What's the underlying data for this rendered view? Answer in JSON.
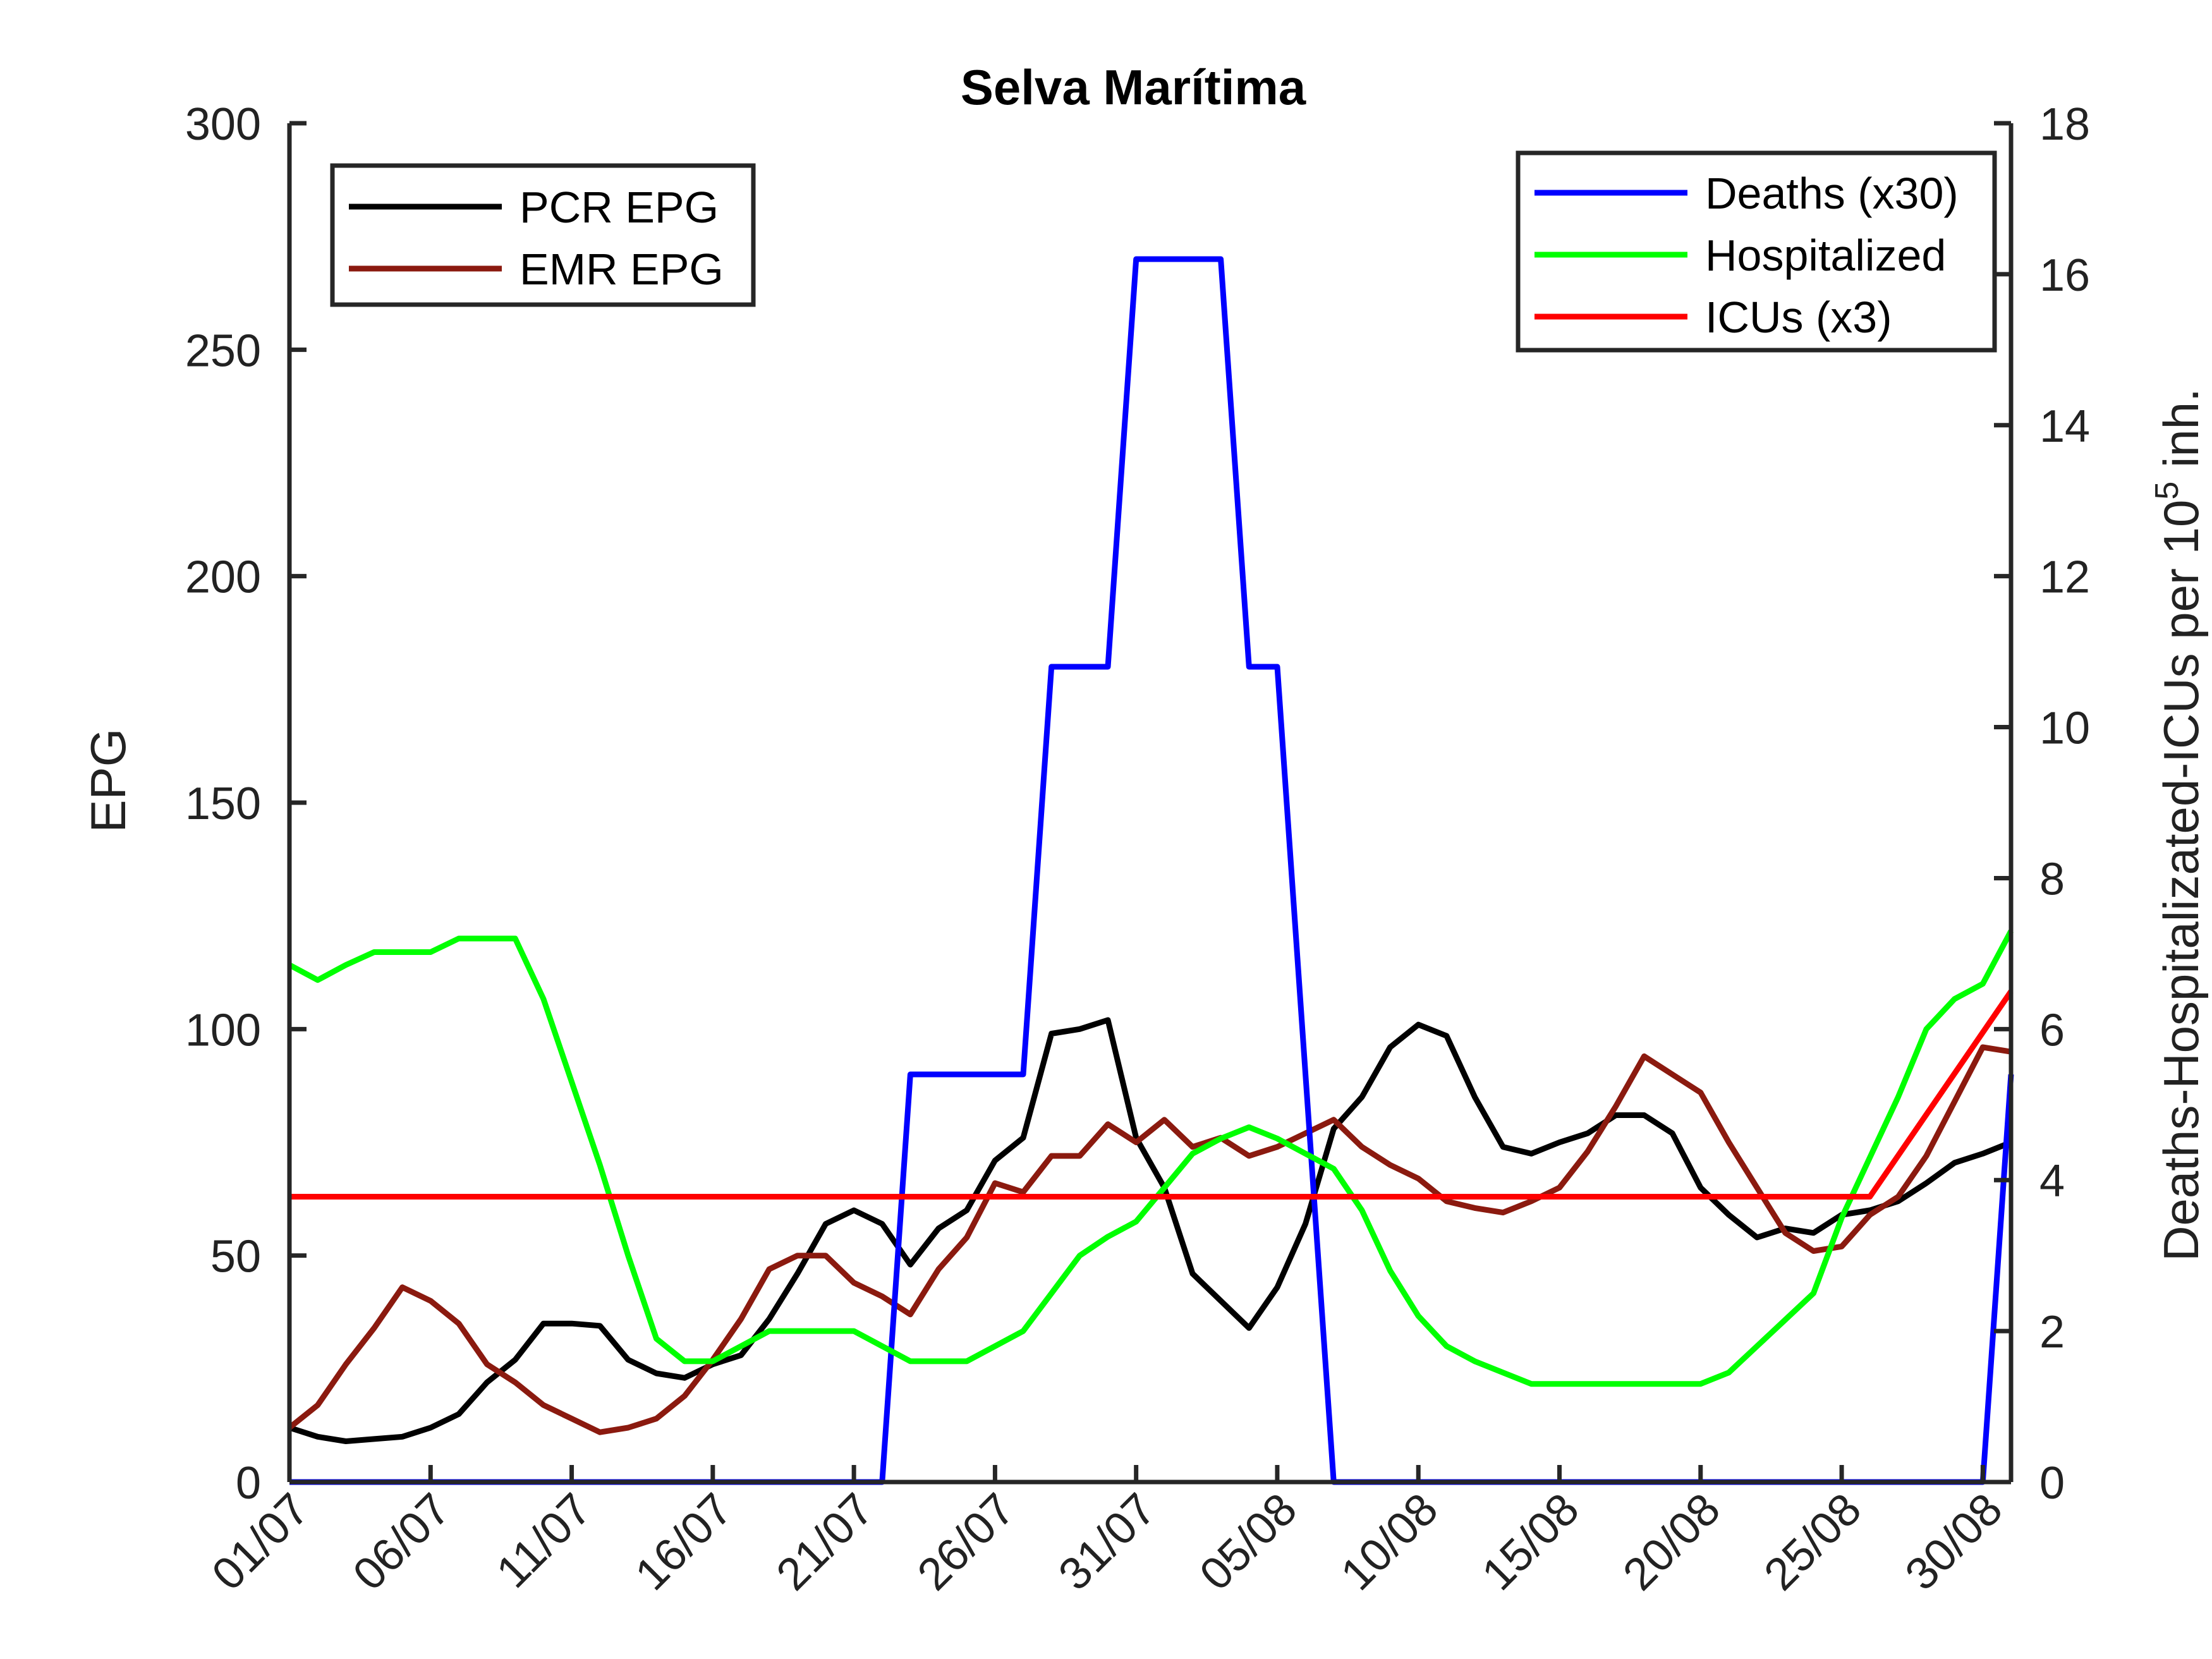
{
  "chart_data": {
    "type": "line",
    "title": "Selva Marítima",
    "xlabel": "",
    "ylabel_left": "EPG",
    "ylabel_right_main": "Deaths-Hospitalizated-ICUs per 10",
    "ylabel_right_sup": "5",
    "ylabel_right_tail": " inh.",
    "x_ticks": [
      "01/07",
      "06/07",
      "11/07",
      "16/07",
      "21/07",
      "26/07",
      "31/07",
      "05/08",
      "10/08",
      "15/08",
      "20/08",
      "25/08",
      "30/08"
    ],
    "x_tick_days": [
      0,
      5,
      10,
      15,
      20,
      25,
      30,
      35,
      40,
      45,
      50,
      55,
      60
    ],
    "x_range_days": [
      0,
      61
    ],
    "y_left": {
      "lim": [
        0,
        300
      ],
      "ticks": [
        0,
        50,
        100,
        150,
        200,
        250,
        300
      ]
    },
    "y_right": {
      "lim": [
        0,
        18
      ],
      "ticks": [
        0,
        2,
        4,
        6,
        8,
        10,
        12,
        14,
        16,
        18
      ]
    },
    "grid": false,
    "legends": [
      {
        "position": "top-left",
        "series": [
          "PCR EPG",
          "EMR EPG"
        ]
      },
      {
        "position": "top-right",
        "series": [
          "Deaths (x30)",
          "Hospitalized",
          "ICUs (x3)"
        ]
      }
    ],
    "series": [
      {
        "name": "PCR EPG",
        "axis": "left",
        "color": "#000000",
        "points": [
          [
            0,
            12
          ],
          [
            1,
            10
          ],
          [
            2,
            9
          ],
          [
            3,
            9.5
          ],
          [
            4,
            10
          ],
          [
            5,
            12
          ],
          [
            6,
            15
          ],
          [
            7,
            22
          ],
          [
            8,
            27
          ],
          [
            9,
            35
          ],
          [
            10,
            35
          ],
          [
            11,
            34.5
          ],
          [
            12,
            27
          ],
          [
            13,
            24
          ],
          [
            14,
            23
          ],
          [
            15,
            26
          ],
          [
            16,
            28
          ],
          [
            17,
            36
          ],
          [
            18,
            46
          ],
          [
            19,
            57
          ],
          [
            20,
            60
          ],
          [
            21,
            57
          ],
          [
            22,
            48
          ],
          [
            23,
            56
          ],
          [
            24,
            60
          ],
          [
            25,
            71
          ],
          [
            26,
            76
          ],
          [
            27,
            99
          ],
          [
            28,
            100
          ],
          [
            29,
            102
          ],
          [
            30,
            76
          ],
          [
            31,
            65
          ],
          [
            32,
            46
          ],
          [
            33,
            40
          ],
          [
            34,
            34
          ],
          [
            35,
            43
          ],
          [
            36,
            57
          ],
          [
            37,
            78
          ],
          [
            38,
            85
          ],
          [
            39,
            96
          ],
          [
            40,
            101
          ],
          [
            41,
            98.5
          ],
          [
            42,
            85
          ],
          [
            43,
            74
          ],
          [
            44,
            72.5
          ],
          [
            45,
            75
          ],
          [
            46,
            77
          ],
          [
            47,
            81
          ],
          [
            48,
            81
          ],
          [
            49,
            77
          ],
          [
            50,
            65
          ],
          [
            51,
            59
          ],
          [
            52,
            54
          ],
          [
            53,
            56
          ],
          [
            54,
            55
          ],
          [
            55,
            59
          ],
          [
            56,
            60
          ],
          [
            57,
            62
          ],
          [
            58,
            66
          ],
          [
            59,
            70.5
          ],
          [
            60,
            72.5
          ],
          [
            61,
            75
          ]
        ]
      },
      {
        "name": "EMR EPG",
        "axis": "left",
        "color": "#8b1a0f",
        "points": [
          [
            0,
            12
          ],
          [
            1,
            17
          ],
          [
            2,
            26
          ],
          [
            3,
            34
          ],
          [
            4,
            43
          ],
          [
            5,
            40
          ],
          [
            6,
            35
          ],
          [
            7,
            26
          ],
          [
            8,
            22
          ],
          [
            9,
            17
          ],
          [
            10,
            14
          ],
          [
            11,
            11
          ],
          [
            12,
            12
          ],
          [
            13,
            14
          ],
          [
            14,
            19
          ],
          [
            15,
            27
          ],
          [
            16,
            36
          ],
          [
            17,
            47
          ],
          [
            18,
            50
          ],
          [
            19,
            50
          ],
          [
            20,
            44
          ],
          [
            21,
            41
          ],
          [
            22,
            37
          ],
          [
            23,
            47
          ],
          [
            24,
            54
          ],
          [
            25,
            66
          ],
          [
            26,
            64
          ],
          [
            27,
            72
          ],
          [
            28,
            72
          ],
          [
            29,
            79
          ],
          [
            30,
            75
          ],
          [
            31,
            80
          ],
          [
            32,
            74
          ],
          [
            33,
            76
          ],
          [
            34,
            72
          ],
          [
            35,
            74
          ],
          [
            36,
            77
          ],
          [
            37,
            80
          ],
          [
            38,
            74
          ],
          [
            39,
            70
          ],
          [
            40,
            67
          ],
          [
            41,
            62
          ],
          [
            42,
            60.5
          ],
          [
            43,
            59.5
          ],
          [
            44,
            62
          ],
          [
            45,
            65
          ],
          [
            46,
            73
          ],
          [
            47,
            83
          ],
          [
            48,
            94
          ],
          [
            49,
            90
          ],
          [
            50,
            86
          ],
          [
            51,
            75
          ],
          [
            52,
            65
          ],
          [
            53,
            55
          ],
          [
            54,
            51
          ],
          [
            55,
            52
          ],
          [
            56,
            59
          ],
          [
            57,
            63
          ],
          [
            58,
            72
          ],
          [
            59,
            84
          ],
          [
            60,
            96
          ],
          [
            61,
            95
          ]
        ]
      },
      {
        "name": "Deaths (x30)",
        "axis": "right",
        "color": "#0000ff",
        "points": [
          [
            0,
            0
          ],
          [
            21,
            0
          ],
          [
            22,
            5.4
          ],
          [
            26,
            5.4
          ],
          [
            27,
            10.8
          ],
          [
            29,
            10.8
          ],
          [
            30,
            16.2
          ],
          [
            33,
            16.2
          ],
          [
            34,
            10.8
          ],
          [
            35,
            10.8
          ],
          [
            37,
            0
          ],
          [
            60,
            0
          ],
          [
            61,
            5.4
          ]
        ]
      },
      {
        "name": "Hospitalized",
        "axis": "right",
        "color": "#00ff00",
        "points": [
          [
            0,
            6.85
          ],
          [
            1,
            6.65
          ],
          [
            2,
            6.85
          ],
          [
            3,
            7.02
          ],
          [
            4,
            7.02
          ],
          [
            5,
            7.02
          ],
          [
            6,
            7.2
          ],
          [
            7,
            7.2
          ],
          [
            8,
            7.2
          ],
          [
            9,
            6.4
          ],
          [
            10,
            5.3
          ],
          [
            11,
            4.2
          ],
          [
            12,
            3.0
          ],
          [
            13,
            1.9
          ],
          [
            14,
            1.6
          ],
          [
            15,
            1.6
          ],
          [
            16,
            1.8
          ],
          [
            17,
            2.0
          ],
          [
            18,
            2.0
          ],
          [
            19,
            2.0
          ],
          [
            20,
            2.0
          ],
          [
            21,
            1.8
          ],
          [
            22,
            1.6
          ],
          [
            23,
            1.6
          ],
          [
            24,
            1.6
          ],
          [
            25,
            1.8
          ],
          [
            26,
            2.0
          ],
          [
            27,
            2.5
          ],
          [
            28,
            3.0
          ],
          [
            29,
            3.25
          ],
          [
            30,
            3.45
          ],
          [
            31,
            3.9
          ],
          [
            32,
            4.35
          ],
          [
            33,
            4.55
          ],
          [
            34,
            4.7
          ],
          [
            35,
            4.55
          ],
          [
            36,
            4.35
          ],
          [
            37,
            4.15
          ],
          [
            38,
            3.6
          ],
          [
            39,
            2.8
          ],
          [
            40,
            2.2
          ],
          [
            41,
            1.8
          ],
          [
            42,
            1.6
          ],
          [
            43,
            1.45
          ],
          [
            44,
            1.3
          ],
          [
            45,
            1.3
          ],
          [
            46,
            1.3
          ],
          [
            47,
            1.3
          ],
          [
            48,
            1.3
          ],
          [
            49,
            1.3
          ],
          [
            50,
            1.3
          ],
          [
            51,
            1.45
          ],
          [
            52,
            1.8
          ],
          [
            53,
            2.15
          ],
          [
            54,
            2.5
          ],
          [
            55,
            3.5
          ],
          [
            56,
            4.3
          ],
          [
            57,
            5.1
          ],
          [
            58,
            6.0
          ],
          [
            59,
            6.4
          ],
          [
            60,
            6.6
          ],
          [
            61,
            7.3
          ]
        ]
      },
      {
        "name": "ICUs (x3)",
        "axis": "right",
        "color": "#ff0000",
        "points": [
          [
            0,
            3.78
          ],
          [
            56,
            3.78
          ],
          [
            61,
            6.5
          ]
        ]
      }
    ]
  }
}
